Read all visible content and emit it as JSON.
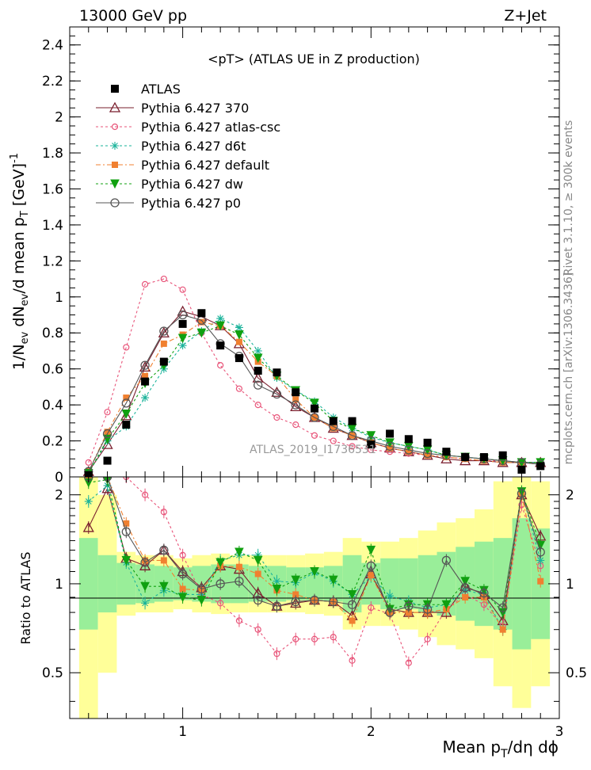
{
  "header": {
    "left": "13000 GeV pp",
    "right": "Z+Jet"
  },
  "side_text": {
    "rivet": "Rivet 3.1.10, ≥ 300k events",
    "source": "mcplots.cern.ch [arXiv:1306.3436]"
  },
  "watermark": "ATLAS_2019_I1736531",
  "chart_data": {
    "type": "line",
    "title": "<pT> (ATLAS UE in Z production)",
    "xlabel": "Mean p_T/dη dϕ",
    "ylabel": "1/N_ev dN_ev/d mean p_T [GeV]^-1",
    "ratio_ylabel": "Ratio to ATLAS",
    "xlim": [
      0.4,
      3.0
    ],
    "ylim": [
      0,
      2.5
    ],
    "ratio_ylim": [
      0.35,
      2.3
    ],
    "x_ticks": [
      "1",
      "2",
      "3"
    ],
    "y_ticks": [
      "0",
      "0.2",
      "0.4",
      "0.6",
      "0.8",
      "1",
      "1.2",
      "1.4",
      "1.6",
      "1.8",
      "2",
      "2.2",
      "2.4"
    ],
    "ratio_ticks": [
      "0.5",
      "1",
      "2"
    ],
    "legend_position": "top-left",
    "x": [
      0.5,
      0.6,
      0.7,
      0.8,
      0.9,
      1.0,
      1.1,
      1.2,
      1.3,
      1.4,
      1.5,
      1.6,
      1.7,
      1.8,
      1.9,
      2.0,
      2.1,
      2.2,
      2.3,
      2.4,
      2.5,
      2.6,
      2.7,
      2.8,
      2.9
    ],
    "data": {
      "name": "ATLAS",
      "color": "#000000",
      "values": [
        0.01,
        0.09,
        0.29,
        0.53,
        0.64,
        0.85,
        0.91,
        0.73,
        0.66,
        0.59,
        0.58,
        0.47,
        0.38,
        0.31,
        0.31,
        0.18,
        0.24,
        0.21,
        0.19,
        0.14,
        0.11,
        0.11,
        0.12,
        0.04,
        0.06
      ]
    },
    "band_inner": [
      0.7,
      0.8,
      0.85,
      0.86,
      0.87,
      0.88,
      0.87,
      0.86,
      0.86,
      0.87,
      0.87,
      0.88,
      0.88,
      0.87,
      0.8,
      0.85,
      0.82,
      0.82,
      0.8,
      0.78,
      0.75,
      0.72,
      0.7,
      0.6,
      0.65
    ],
    "band_outer": [
      0.35,
      0.5,
      0.78,
      0.8,
      0.8,
      0.82,
      0.8,
      0.79,
      0.8,
      0.8,
      0.8,
      0.8,
      0.79,
      0.78,
      0.7,
      0.72,
      0.72,
      0.7,
      0.66,
      0.62,
      0.6,
      0.56,
      0.45,
      0.38,
      0.45
    ],
    "series": [
      {
        "name": "Pythia 6.427 370",
        "color": "#7a1f2e",
        "marker": "triangle",
        "dash": "",
        "values": [
          0.03,
          0.18,
          0.34,
          0.61,
          0.8,
          0.92,
          0.89,
          0.84,
          0.74,
          0.55,
          0.47,
          0.39,
          0.33,
          0.27,
          0.23,
          0.19,
          0.16,
          0.14,
          0.12,
          0.1,
          0.09,
          0.09,
          0.08,
          0.08,
          0.08
        ],
        "ratio": [
          1.55,
          2.1,
          1.22,
          1.15,
          1.3,
          1.1,
          0.97,
          1.15,
          1.12,
          0.93,
          0.84,
          0.86,
          0.88,
          0.87,
          0.78,
          1.08,
          0.82,
          0.8,
          0.8,
          0.8,
          0.98,
          0.92,
          0.75,
          2.0,
          1.45
        ]
      },
      {
        "name": "Pythia 6.427 atlas-csc",
        "color": "#e8557a",
        "marker": "circle",
        "dash": "3,3",
        "values": [
          0.08,
          0.36,
          0.72,
          1.07,
          1.1,
          1.04,
          0.8,
          0.62,
          0.49,
          0.4,
          0.33,
          0.29,
          0.23,
          0.2,
          0.17,
          0.15,
          0.14,
          0.13,
          0.12,
          0.11,
          0.1,
          0.09,
          0.09,
          0.08,
          0.07
        ],
        "ratio": [
          2.5,
          2.4,
          2.35,
          2.0,
          1.75,
          1.25,
          0.92,
          0.86,
          0.75,
          0.7,
          0.58,
          0.65,
          0.65,
          0.66,
          0.55,
          0.83,
          0.79,
          0.54,
          0.65,
          0.82,
          0.92,
          0.85,
          0.72,
          1.85,
          1.15
        ]
      },
      {
        "name": "Pythia 6.427 d6t",
        "color": "#1ab39a",
        "marker": "star",
        "dash": "3,3",
        "values": [
          0.02,
          0.2,
          0.28,
          0.44,
          0.6,
          0.73,
          0.81,
          0.88,
          0.83,
          0.7,
          0.55,
          0.48,
          0.42,
          0.33,
          0.27,
          0.22,
          0.19,
          0.17,
          0.15,
          0.12,
          0.11,
          0.1,
          0.09,
          0.08,
          0.08
        ],
        "ratio": [
          1.9,
          2.15,
          1.18,
          0.86,
          0.95,
          0.92,
          0.92,
          1.2,
          1.25,
          1.25,
          1.02,
          1.01,
          1.09,
          1.02,
          0.92,
          1.06,
          0.91,
          0.87,
          0.83,
          0.85,
          0.95,
          0.92,
          0.7,
          2.05,
          1.2
        ]
      },
      {
        "name": "Pythia 6.427 default",
        "color": "#f08030",
        "marker": "square",
        "dash": "6,3,2,3",
        "values": [
          0.03,
          0.25,
          0.44,
          0.56,
          0.74,
          0.79,
          0.86,
          0.84,
          0.75,
          0.64,
          0.56,
          0.43,
          0.33,
          0.27,
          0.23,
          0.19,
          0.16,
          0.14,
          0.12,
          0.11,
          0.1,
          0.09,
          0.08,
          0.08,
          0.07
        ],
        "ratio": [
          2.35,
          2.3,
          1.6,
          1.2,
          1.2,
          0.96,
          0.95,
          1.15,
          1.14,
          1.08,
          0.95,
          0.92,
          0.88,
          0.87,
          0.75,
          1.07,
          0.8,
          0.8,
          0.8,
          0.82,
          0.9,
          0.9,
          0.7,
          2.0,
          1.02
        ]
      },
      {
        "name": "Pythia 6.427 dw",
        "color": "#10a010",
        "marker": "triangle-down",
        "dash": "3,3",
        "values": [
          0.02,
          0.21,
          0.35,
          0.52,
          0.62,
          0.77,
          0.8,
          0.84,
          0.79,
          0.66,
          0.56,
          0.48,
          0.41,
          0.31,
          0.27,
          0.23,
          0.19,
          0.17,
          0.15,
          0.12,
          0.11,
          0.1,
          0.09,
          0.08,
          0.08
        ],
        "ratio": [
          2.2,
          2.25,
          1.2,
          0.98,
          0.98,
          0.9,
          0.88,
          1.18,
          1.28,
          1.2,
          0.96,
          1.03,
          1.1,
          1.03,
          0.92,
          1.3,
          0.82,
          0.85,
          0.85,
          0.85,
          1.02,
          0.95,
          0.8,
          2.05,
          1.35
        ]
      },
      {
        "name": "Pythia 6.427 p0",
        "color": "#555555",
        "marker": "open-circle",
        "dash": "",
        "values": [
          0.03,
          0.24,
          0.41,
          0.62,
          0.81,
          0.9,
          0.87,
          0.74,
          0.67,
          0.51,
          0.46,
          0.4,
          0.33,
          0.28,
          0.23,
          0.2,
          0.17,
          0.15,
          0.13,
          0.12,
          0.11,
          0.1,
          0.09,
          0.08,
          0.07
        ],
        "ratio": [
          2.4,
          2.35,
          1.5,
          1.18,
          1.3,
          1.08,
          0.96,
          1.0,
          1.02,
          0.88,
          0.84,
          0.87,
          0.88,
          0.87,
          0.85,
          1.15,
          0.8,
          0.84,
          0.82,
          1.2,
          0.97,
          0.93,
          0.83,
          2.02,
          1.28
        ]
      }
    ]
  }
}
